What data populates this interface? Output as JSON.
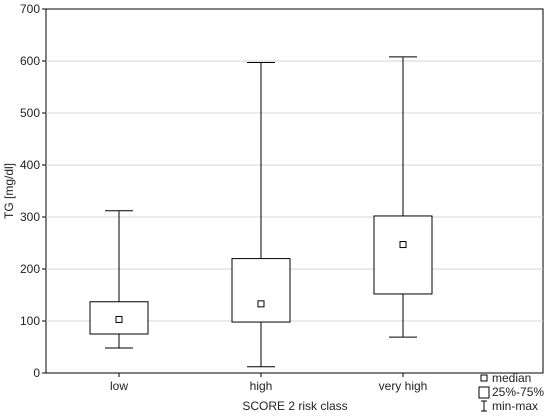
{
  "chart_data": {
    "type": "boxplot",
    "xlabel": "SCORE 2 risk class",
    "ylabel": "TG [mg/dl]",
    "ylim": [
      0,
      700
    ],
    "yticks": [
      0,
      100,
      200,
      300,
      400,
      500,
      600,
      700
    ],
    "grid": "horizontal",
    "legend_position": "bottom-right",
    "categories": [
      "low",
      "high",
      "very high"
    ],
    "boxes": [
      {
        "category": "low",
        "min": 48,
        "q1": 75,
        "median": 103,
        "q3": 137,
        "max": 312
      },
      {
        "category": "high",
        "min": 12,
        "q1": 98,
        "median": 133,
        "q3": 220,
        "max": 597
      },
      {
        "category": "very high",
        "min": 69,
        "q1": 152,
        "median": 247,
        "q3": 302,
        "max": 608
      }
    ],
    "legend": [
      "median",
      "25%-75%",
      "min-max"
    ],
    "colors": {
      "box_fill": "#ffffff",
      "stroke": "#000000",
      "grid": "#d4d4d4"
    }
  }
}
